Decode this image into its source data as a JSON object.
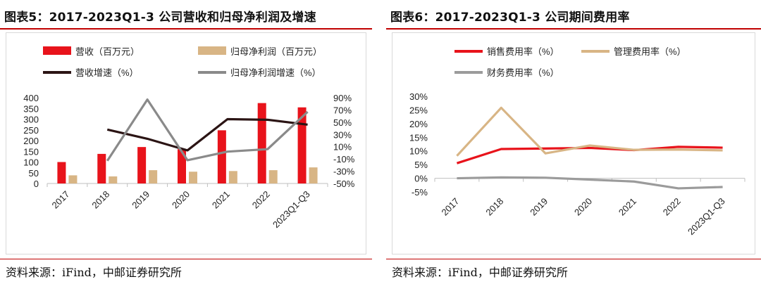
{
  "panels": [
    {
      "title": "图表5：2017-2023Q1-3 公司营收和归母净利润及增速",
      "source": "资料来源：iFind，中邮证券研究所"
    },
    {
      "title": "图表6：2017-2023Q1-3 公司期间费用率",
      "source": "资料来源：iFind，中邮证券研究所"
    }
  ],
  "chart_data": [
    {
      "type": "bar",
      "categories": [
        "2017",
        "2018",
        "2019",
        "2020",
        "2021",
        "2022",
        "2023Q1-Q3"
      ],
      "ylim": [
        0,
        400
      ],
      "yticks": [
        "400",
        "350",
        "300",
        "250",
        "200",
        "150",
        "100",
        "50",
        "0"
      ],
      "y2lim": [
        -50,
        90
      ],
      "y2ticks": [
        "90%",
        "70%",
        "50%",
        "30%",
        "10%",
        "-10%",
        "-30%",
        "-50%"
      ],
      "series": [
        {
          "name": "营收（百万元）",
          "kind": "bar",
          "axis": "left",
          "color": "#e8131b",
          "values": [
            100,
            138,
            170,
            160,
            248,
            375,
            355
          ]
        },
        {
          "name": "归母净利润（百万元）",
          "kind": "bar",
          "axis": "left",
          "color": "#d8b585",
          "values": [
            38,
            33,
            62,
            55,
            58,
            62,
            75
          ]
        },
        {
          "name": "营收增速（%）",
          "kind": "line",
          "axis": "right",
          "color": "#2b1414",
          "values": [
            null,
            38,
            23,
            4,
            55,
            54,
            46
          ]
        },
        {
          "name": "归母净利润增速（%）",
          "kind": "line",
          "axis": "right",
          "color": "#8a8a8a",
          "values": [
            null,
            -13,
            87,
            -12,
            2,
            6,
            67
          ]
        }
      ]
    },
    {
      "type": "line",
      "categories": [
        "2017",
        "2018",
        "2019",
        "2020",
        "2021",
        "2022",
        "2023Q1-Q3"
      ],
      "ylim": [
        -5,
        30
      ],
      "yticks": [
        "30%",
        "25%",
        "20%",
        "15%",
        "10%",
        "5%",
        "0%",
        "-5%"
      ],
      "series": [
        {
          "name": "销售费用率（%）",
          "color": "#e8131b",
          "values": [
            5.5,
            10.7,
            10.9,
            11.1,
            10.3,
            11.5,
            11.2
          ]
        },
        {
          "name": "管理费用率（%）",
          "color": "#d8b585",
          "values": [
            8.2,
            25.8,
            9.1,
            12.0,
            10.4,
            10.5,
            10.2
          ]
        },
        {
          "name": "财务费用率（%）",
          "color": "#9b9b9b",
          "values": [
            0,
            0.3,
            0.2,
            -0.5,
            -1.2,
            -3.7,
            -3.2
          ]
        }
      ]
    }
  ]
}
